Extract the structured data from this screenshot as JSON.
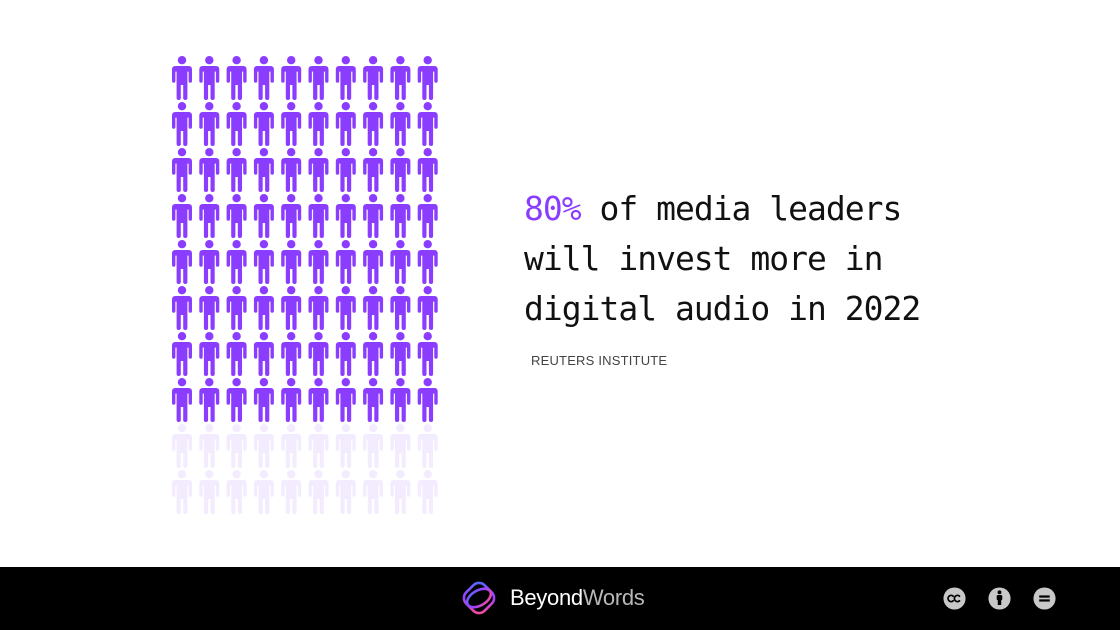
{
  "pictogram": {
    "icon": "person-icon",
    "rows": 10,
    "columns": 10,
    "highlighted_count": 80,
    "highlight_color": "#8b3dff",
    "faded_color": "#f3ecff"
  },
  "headline": {
    "stat": "80%",
    "text": " of media leaders will invest more in digital audio in 2022",
    "accent_color": "#8b3dff"
  },
  "source": "REUTERS INSTITUTE",
  "footer": {
    "brand_logo": "beyondwords-logo-icon",
    "brand_primary": "Beyond",
    "brand_secondary": "Words",
    "license_icons": [
      "cc-icon",
      "attribution-icon",
      "no-derivatives-icon"
    ]
  }
}
